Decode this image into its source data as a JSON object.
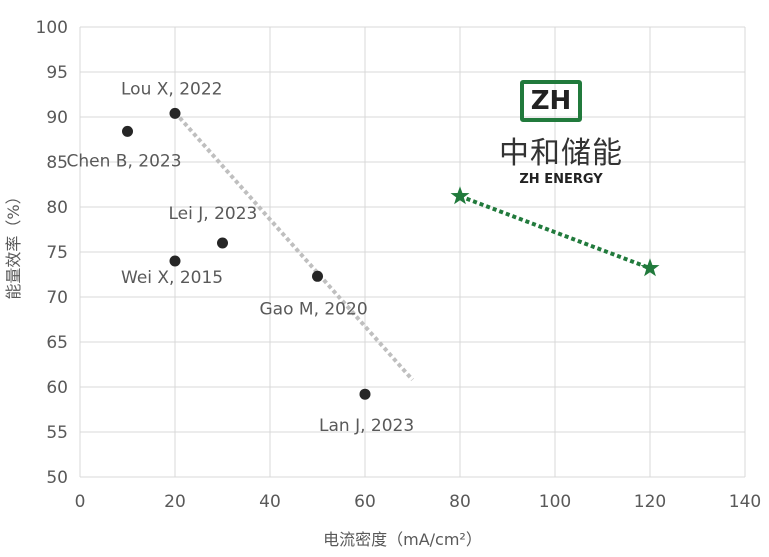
{
  "chart_data": {
    "type": "scatter",
    "xlabel": "电流密度（mA/cm²）",
    "ylabel": "能量效率（%）",
    "xlim": [
      0,
      140
    ],
    "ylim": [
      50,
      100
    ],
    "xticks": [
      0,
      20,
      40,
      60,
      80,
      100,
      120,
      140
    ],
    "yticks": [
      50,
      55,
      60,
      65,
      70,
      75,
      80,
      85,
      90,
      95,
      100
    ],
    "grid": true,
    "series": [
      {
        "marker": "circle",
        "color": "#262626",
        "points": [
          {
            "x": 20,
            "y": 90.4,
            "label": "Lou X, 2022"
          },
          {
            "x": 10,
            "y": 88.4,
            "label": "Chen B, 2023"
          },
          {
            "x": 30,
            "y": 76.0,
            "label": "Lei J, 2023"
          },
          {
            "x": 20,
            "y": 74.0,
            "label": "Wei X, 2015"
          },
          {
            "x": 50,
            "y": 72.3,
            "label": "Gao M, 2020"
          },
          {
            "x": 60,
            "y": 59.2,
            "label": "Lan J, 2023"
          }
        ],
        "trendline": {
          "color": "#bfbfbf",
          "from": [
            20,
            90.5
          ],
          "to": [
            70,
            60.8
          ]
        }
      },
      {
        "marker": "star",
        "color": "#217a3c",
        "points": [
          {
            "x": 80,
            "y": 81.2
          },
          {
            "x": 120,
            "y": 73.2
          }
        ],
        "trendline": {
          "color": "#217a3c",
          "from": [
            80,
            81.2
          ],
          "to": [
            120,
            73.2
          ]
        }
      }
    ]
  },
  "logo": {
    "mark": "ZH",
    "name_cn": "中和储能",
    "name_en": "ZH ENERGY",
    "color": "#217a3c"
  }
}
